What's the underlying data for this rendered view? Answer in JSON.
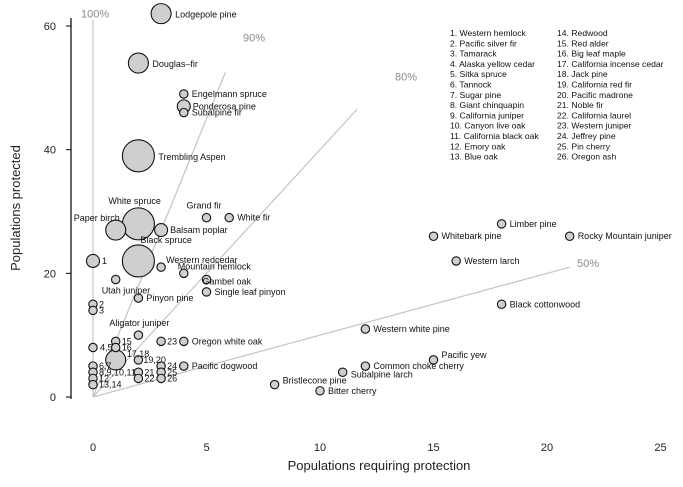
{
  "chart_data": {
    "type": "scatter",
    "xlabel": "Populations requiring protection",
    "ylabel": "Populations protected",
    "xlim": [
      0,
      25
    ],
    "ylim": [
      0,
      60
    ],
    "xticks": [
      "0",
      "5",
      "10",
      "15",
      "20",
      "25"
    ],
    "yticks": [
      "0",
      "20",
      "40",
      "60"
    ],
    "marker_color": "#cfcfcf",
    "ref_line_color": "#c4c4c4",
    "grid": false,
    "reference_lines": [
      {
        "label": "100%",
        "fraction": 1.0
      },
      {
        "label": "90%",
        "fraction": 0.9
      },
      {
        "label": "80%",
        "fraction": 0.8
      },
      {
        "label": "50%",
        "fraction": 0.5
      }
    ],
    "points": [
      {
        "x": 3,
        "y": 62,
        "size": 3,
        "label": "Lodgepole pine"
      },
      {
        "x": 2,
        "y": 54,
        "size": 3,
        "label": "Douglas–fir"
      },
      {
        "x": 4,
        "y": 49,
        "size": 1,
        "label": "Engelmann spruce"
      },
      {
        "x": 4,
        "y": 47,
        "size": 2,
        "label": "Ponderosa pine"
      },
      {
        "x": 4,
        "y": 46,
        "size": 1,
        "label": "Subalpine fir"
      },
      {
        "x": 2,
        "y": 39,
        "size": 6,
        "label": "Trembling Aspen"
      },
      {
        "x": 5,
        "y": 29,
        "size": 1,
        "label": "Grand fir"
      },
      {
        "x": 6,
        "y": 29,
        "size": 1,
        "label": "White fir"
      },
      {
        "x": 1,
        "y": 27,
        "size": 3,
        "label": "Paper birch"
      },
      {
        "x": 2,
        "y": 28,
        "size": 6,
        "label": "White spruce"
      },
      {
        "x": 3,
        "y": 27,
        "size": 2,
        "label": "Balsam poplar"
      },
      {
        "x": 2,
        "y": 22,
        "size": 6,
        "label": "Black spruce"
      },
      {
        "x": 3,
        "y": 21,
        "size": 1,
        "label": "Western redcedar"
      },
      {
        "x": 4,
        "y": 20,
        "size": 1,
        "label": "Mountain hemlock"
      },
      {
        "x": 5,
        "y": 19,
        "size": 1,
        "label": "Gambel oak"
      },
      {
        "x": 5,
        "y": 17,
        "size": 1,
        "label": "Single leaf pinyon"
      },
      {
        "x": 1,
        "y": 19,
        "size": 1,
        "label": "Utah juniper"
      },
      {
        "x": 2,
        "y": 16,
        "size": 1,
        "label": "Pinyon pine"
      },
      {
        "x": 0,
        "y": 22,
        "size": 2,
        "label": "1"
      },
      {
        "x": 0,
        "y": 15,
        "size": 1,
        "label": "2"
      },
      {
        "x": 0,
        "y": 14,
        "size": 1,
        "label": "3"
      },
      {
        "x": 2,
        "y": 10,
        "size": 1,
        "label": "Aligator juniper"
      },
      {
        "x": 1,
        "y": 9,
        "size": 1,
        "label": "15"
      },
      {
        "x": 1,
        "y": 8,
        "size": 1,
        "label": "16"
      },
      {
        "x": 0,
        "y": 8,
        "size": 1,
        "label": "4,5"
      },
      {
        "x": 1,
        "y": 6,
        "size": 3,
        "label": "17,18"
      },
      {
        "x": 3,
        "y": 9,
        "size": 1,
        "label": "23"
      },
      {
        "x": 4,
        "y": 9,
        "size": 1,
        "label": "Oregon white oak"
      },
      {
        "x": 2,
        "y": 6,
        "size": 1,
        "label": "19,20"
      },
      {
        "x": 0,
        "y": 5,
        "size": 1,
        "label": "6,7"
      },
      {
        "x": 0,
        "y": 4,
        "size": 1,
        "label": "8,9,10,11"
      },
      {
        "x": 0,
        "y": 3,
        "size": 1,
        "label": "12"
      },
      {
        "x": 0,
        "y": 2,
        "size": 1,
        "label": "13,14"
      },
      {
        "x": 2,
        "y": 4,
        "size": 1,
        "label": "21"
      },
      {
        "x": 2,
        "y": 3,
        "size": 1,
        "label": "22"
      },
      {
        "x": 3,
        "y": 5,
        "size": 1,
        "label": "24"
      },
      {
        "x": 3,
        "y": 4,
        "size": 1,
        "label": "25"
      },
      {
        "x": 3,
        "y": 3,
        "size": 1,
        "label": "26"
      },
      {
        "x": 4,
        "y": 5,
        "size": 1,
        "label": "Pacific dogwood"
      },
      {
        "x": 8,
        "y": 2,
        "size": 1,
        "label": "Bristlecone pine"
      },
      {
        "x": 10,
        "y": 1,
        "size": 1,
        "label": "Bitter cherry"
      },
      {
        "x": 11,
        "y": 4,
        "size": 1,
        "label": "Subalpine larch"
      },
      {
        "x": 12,
        "y": 5,
        "size": 1,
        "label": "Common choke cherry"
      },
      {
        "x": 12,
        "y": 11,
        "size": 1,
        "label": "Western white pine"
      },
      {
        "x": 15,
        "y": 6,
        "size": 1,
        "label": "Pacific yew"
      },
      {
        "x": 18,
        "y": 15,
        "size": 1,
        "label": "Black cottonwood"
      },
      {
        "x": 18,
        "y": 28,
        "size": 1,
        "label": "Limber pine"
      },
      {
        "x": 15,
        "y": 26,
        "size": 1,
        "label": "Whitebark pine"
      },
      {
        "x": 16,
        "y": 22,
        "size": 1,
        "label": "Western larch"
      },
      {
        "x": 21,
        "y": 26,
        "size": 1,
        "label": "Rocky Mountain juniper"
      }
    ],
    "legend": [
      "1. Western hemlock",
      "2. Pacific silver fir",
      "3. Tamarack",
      "4. Alaska yellow cedar",
      "5. Sitka spruce",
      "6. Tannock",
      "7. Sugar pine",
      "8. Giant chinquapin",
      "9. California juniper",
      "10. Canyon live oak",
      "11. California black oak",
      "12. Emory oak",
      "13. Blue oak",
      "14. Redwood",
      "15. Red alder",
      "16. Big leaf maple",
      "17. California incense cedar",
      "18. Jack pine",
      "19. California red fir",
      "20. Pacific madrone",
      "21. Noble fir",
      "22. California laurel",
      "23. Western juniper",
      "24. Jeffrey pine",
      "25. Pin cherry",
      "26. Oregon ash"
    ]
  }
}
